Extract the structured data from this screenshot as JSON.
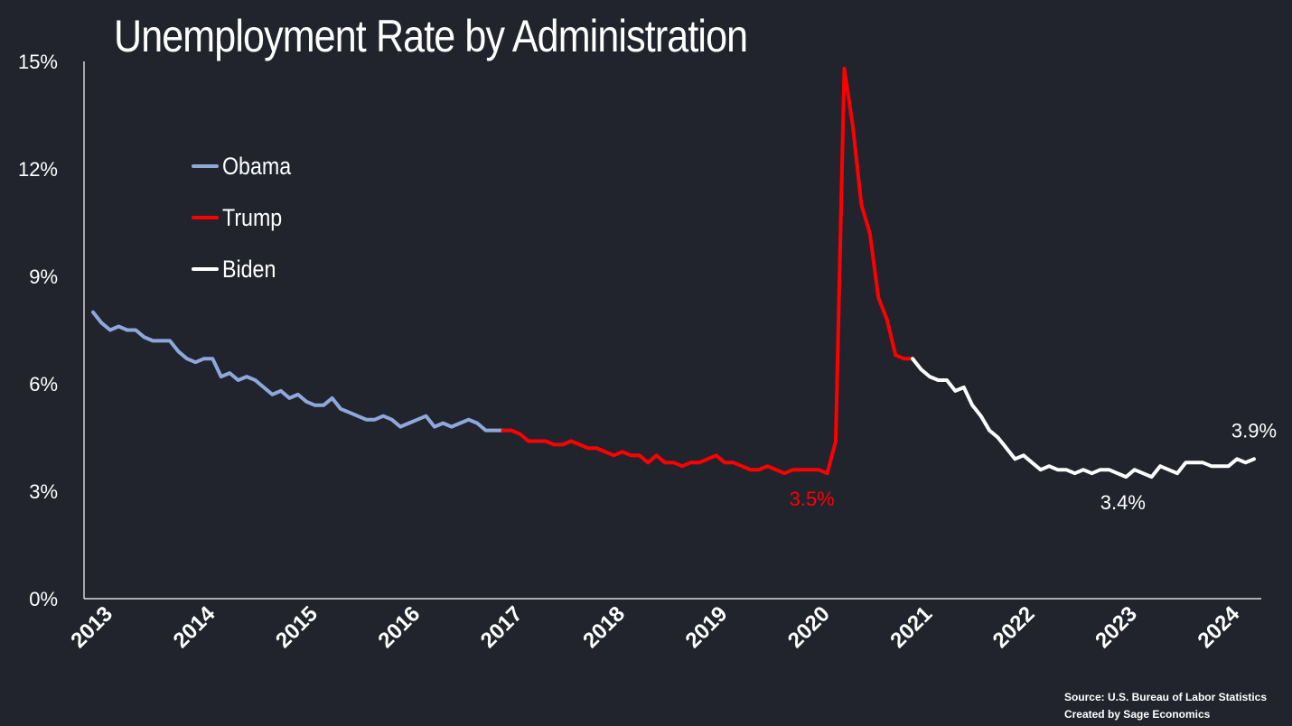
{
  "chart_data": {
    "type": "line",
    "title": "Unemployment Rate by Administration",
    "xlabel": "",
    "ylabel": "",
    "ylim": [
      0,
      15
    ],
    "y_ticks": [
      "0%",
      "3%",
      "6%",
      "9%",
      "12%",
      "15%"
    ],
    "y_tick_values": [
      0,
      3,
      6,
      9,
      12,
      15
    ],
    "x_ticks": [
      "2013",
      "2014",
      "2015",
      "2016",
      "2017",
      "2018",
      "2019",
      "2020",
      "2021",
      "2022",
      "2023",
      "2024"
    ],
    "x_tick_values": [
      2013,
      2014,
      2015,
      2016,
      2017,
      2018,
      2019,
      2020,
      2021,
      2022,
      2023,
      2024
    ],
    "xlim": [
      2013.0,
      2024.3333
    ],
    "grid": false,
    "legend_position": "upper-left",
    "series": [
      {
        "name": "Obama",
        "color": "#8fa8dc",
        "x": [
          2013.0,
          2013.0833,
          2013.1667,
          2013.25,
          2013.3333,
          2013.4167,
          2013.5,
          2013.5833,
          2013.6667,
          2013.75,
          2013.8333,
          2013.9167,
          2014.0,
          2014.0833,
          2014.1667,
          2014.25,
          2014.3333,
          2014.4167,
          2014.5,
          2014.5833,
          2014.6667,
          2014.75,
          2014.8333,
          2014.9167,
          2015.0,
          2015.0833,
          2015.1667,
          2015.25,
          2015.3333,
          2015.4167,
          2015.5,
          2015.5833,
          2015.6667,
          2015.75,
          2015.8333,
          2015.9167,
          2016.0,
          2016.0833,
          2016.1667,
          2016.25,
          2016.3333,
          2016.4167,
          2016.5,
          2016.5833,
          2016.6667,
          2016.75,
          2016.8333,
          2016.9167,
          2017.0
        ],
        "values": [
          8.0,
          7.7,
          7.5,
          7.6,
          7.5,
          7.5,
          7.3,
          7.2,
          7.2,
          7.2,
          6.9,
          6.7,
          6.6,
          6.7,
          6.7,
          6.2,
          6.3,
          6.1,
          6.2,
          6.1,
          5.9,
          5.7,
          5.8,
          5.6,
          5.7,
          5.5,
          5.4,
          5.4,
          5.6,
          5.3,
          5.2,
          5.1,
          5.0,
          5.0,
          5.1,
          5.0,
          4.8,
          4.9,
          5.0,
          5.1,
          4.8,
          4.9,
          4.8,
          4.9,
          5.0,
          4.9,
          4.7,
          4.7,
          4.7
        ]
      },
      {
        "name": "Trump",
        "color": "#ff0000",
        "x": [
          2017.0,
          2017.0833,
          2017.1667,
          2017.25,
          2017.3333,
          2017.4167,
          2017.5,
          2017.5833,
          2017.6667,
          2017.75,
          2017.8333,
          2017.9167,
          2018.0,
          2018.0833,
          2018.1667,
          2018.25,
          2018.3333,
          2018.4167,
          2018.5,
          2018.5833,
          2018.6667,
          2018.75,
          2018.8333,
          2018.9167,
          2019.0,
          2019.0833,
          2019.1667,
          2019.25,
          2019.3333,
          2019.4167,
          2019.5,
          2019.5833,
          2019.6667,
          2019.75,
          2019.8333,
          2019.9167,
          2020.0,
          2020.0833,
          2020.1667,
          2020.25,
          2020.3333,
          2020.4167,
          2020.5,
          2020.5833,
          2020.6667,
          2020.75,
          2020.8333,
          2020.9167,
          2021.0
        ],
        "values": [
          4.7,
          4.7,
          4.6,
          4.4,
          4.4,
          4.4,
          4.3,
          4.3,
          4.4,
          4.3,
          4.2,
          4.2,
          4.1,
          4.0,
          4.1,
          4.0,
          4.0,
          3.8,
          4.0,
          3.8,
          3.8,
          3.7,
          3.8,
          3.8,
          3.9,
          4.0,
          3.8,
          3.8,
          3.7,
          3.6,
          3.6,
          3.7,
          3.6,
          3.5,
          3.6,
          3.6,
          3.6,
          3.6,
          3.5,
          4.4,
          14.8,
          13.2,
          11.0,
          10.2,
          8.4,
          7.8,
          6.8,
          6.7,
          6.7
        ]
      },
      {
        "name": "Biden",
        "color": "#ffffff",
        "x": [
          2021.0,
          2021.0833,
          2021.1667,
          2021.25,
          2021.3333,
          2021.4167,
          2021.5,
          2021.5833,
          2021.6667,
          2021.75,
          2021.8333,
          2021.9167,
          2022.0,
          2022.0833,
          2022.1667,
          2022.25,
          2022.3333,
          2022.4167,
          2022.5,
          2022.5833,
          2022.6667,
          2022.75,
          2022.8333,
          2022.9167,
          2023.0,
          2023.0833,
          2023.1667,
          2023.25,
          2023.3333,
          2023.4167,
          2023.5,
          2023.5833,
          2023.6667,
          2023.75,
          2023.8333,
          2023.9167,
          2024.0,
          2024.0833,
          2024.1667,
          2024.25,
          2024.3333
        ],
        "values": [
          6.7,
          6.4,
          6.2,
          6.1,
          6.1,
          5.8,
          5.9,
          5.4,
          5.1,
          4.7,
          4.5,
          4.2,
          3.9,
          4.0,
          3.8,
          3.6,
          3.7,
          3.6,
          3.6,
          3.5,
          3.6,
          3.5,
          3.6,
          3.6,
          3.5,
          3.4,
          3.6,
          3.5,
          3.4,
          3.7,
          3.6,
          3.5,
          3.8,
          3.8,
          3.8,
          3.7,
          3.7,
          3.7,
          3.9,
          3.8,
          3.9
        ]
      }
    ],
    "annotations": [
      {
        "text": "3.5%",
        "x": 2020.0,
        "y": 3.5,
        "color": "#ff0000"
      },
      {
        "text": "3.4%",
        "x": 2023.0,
        "y": 3.4,
        "color": "#ffffff"
      },
      {
        "text": "3.9%",
        "x": 2024.3333,
        "y": 3.9,
        "color": "#ffffff"
      }
    ]
  },
  "legend": [
    {
      "label": "Obama",
      "color": "#8fa8dc"
    },
    {
      "label": "Trump",
      "color": "#ff0000"
    },
    {
      "label": "Biden",
      "color": "#ffffff"
    }
  ],
  "footer": {
    "source": "Source: U.S. Bureau of Labor Statistics",
    "credit": "Created by Sage Economics"
  }
}
